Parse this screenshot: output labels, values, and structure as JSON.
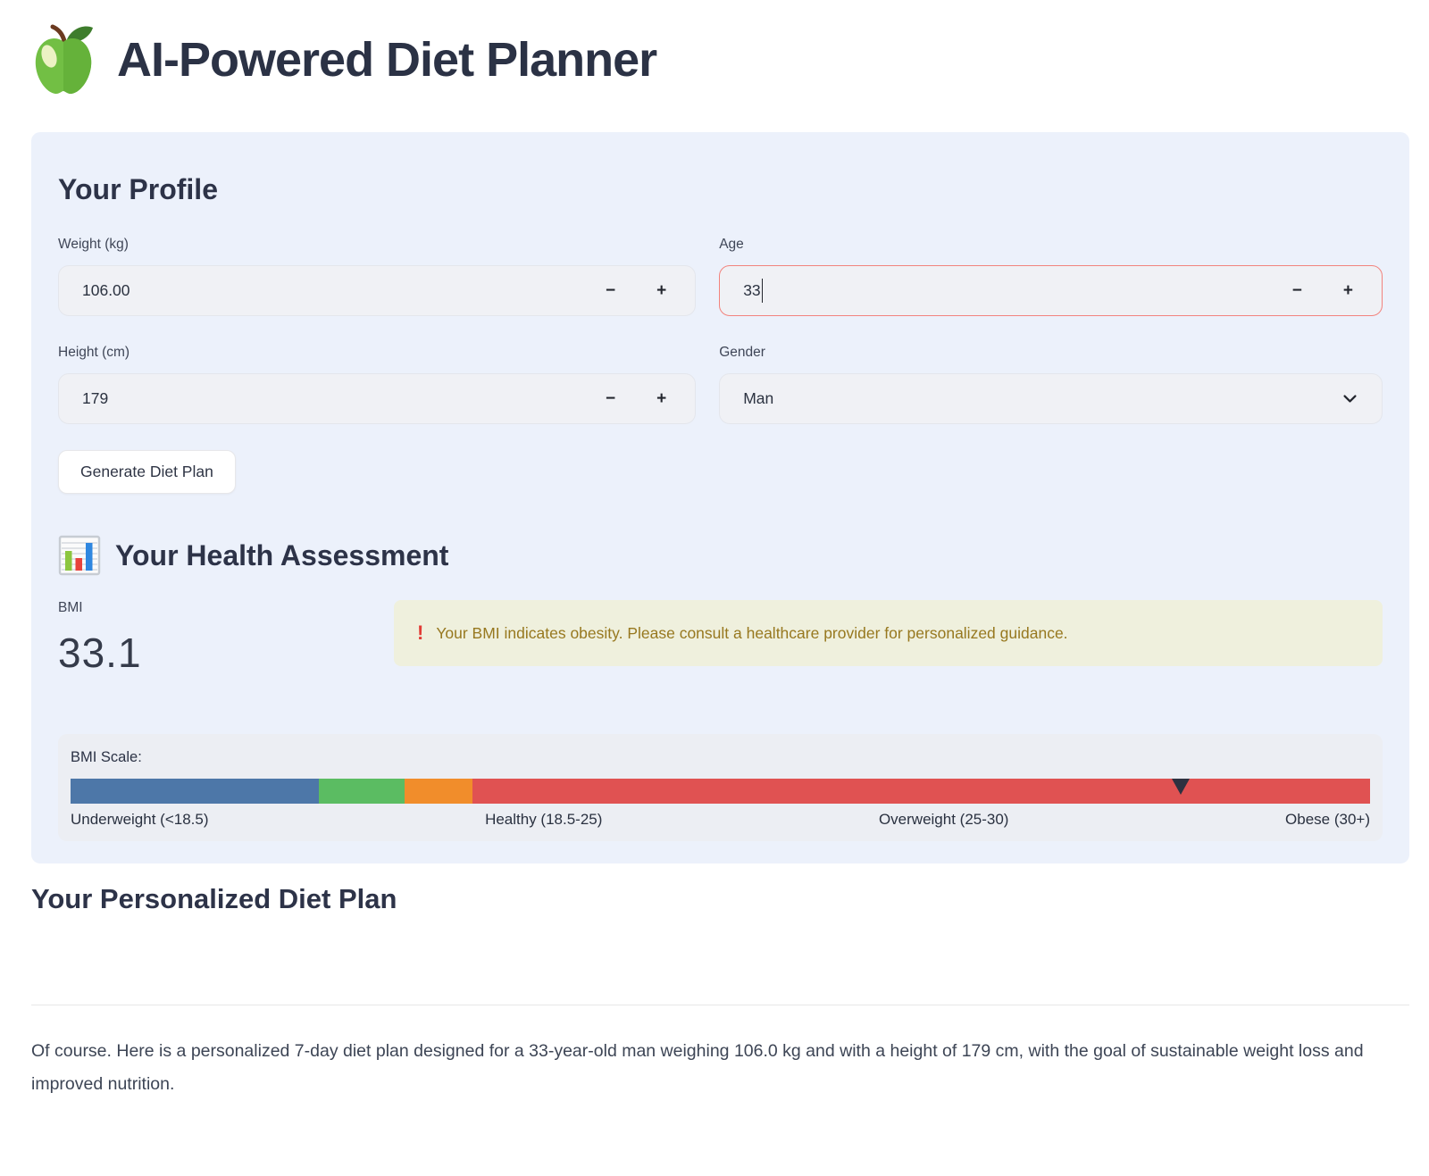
{
  "header": {
    "title": "AI-Powered Diet Planner"
  },
  "profile": {
    "title": "Your Profile",
    "weight": {
      "label": "Weight (kg)",
      "value": "106.00"
    },
    "age": {
      "label": "Age",
      "value": "33"
    },
    "height": {
      "label": "Height (cm)",
      "value": "179"
    },
    "gender": {
      "label": "Gender",
      "value": "Man"
    },
    "stepper": {
      "decrement": "−",
      "increment": "+"
    },
    "generate_button": "Generate Diet Plan"
  },
  "assessment": {
    "title": "Your Health Assessment",
    "bmi_label": "BMI",
    "bmi_value": "33.1",
    "warning": {
      "icon": "!",
      "text": "Your BMI indicates obesity. Please consult a healthcare provider for personalized guidance.",
      "background_color": "#eff0dd",
      "text_color": "#97781f",
      "icon_color": "#e23c36"
    },
    "scale": {
      "label": "BMI Scale:",
      "segments": [
        {
          "name": "underweight",
          "color": "#4d77a8",
          "width_pct": 19.1
        },
        {
          "name": "healthy",
          "color": "#5bbc62",
          "width_pct": 6.6
        },
        {
          "name": "overweight",
          "color": "#f18d2b",
          "width_pct": 5.2
        },
        {
          "name": "obese",
          "color": "#e05252",
          "width_pct": 69.1
        }
      ],
      "marker": {
        "position_pct": 85.4,
        "color": "#2e3140"
      },
      "labels": [
        "Underweight (<18.5)",
        "Healthy (18.5-25)",
        "Overweight (25-30)",
        "Obese (30+)"
      ]
    }
  },
  "plan": {
    "title": "Your Personalized Diet Plan",
    "intro": "Of course. Here is a personalized 7-day diet plan designed for a 33-year-old man weighing 106.0 kg and with a height of 179 cm, with the goal of sustainable weight loss and improved nutrition."
  }
}
